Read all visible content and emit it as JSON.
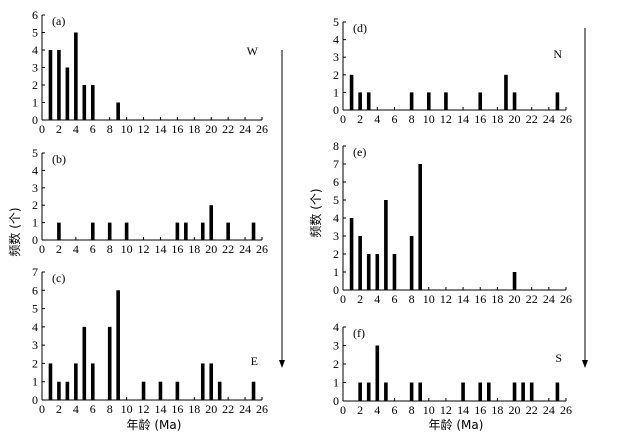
{
  "figure": {
    "xlabel": "年龄 (Ma)",
    "ylabel": "频数 (个)"
  },
  "chart_data": [
    {
      "id": "a",
      "type": "bar",
      "panel_label": "(a)",
      "direction_label": "W",
      "x": [
        1,
        2,
        3,
        4,
        5,
        6,
        9
      ],
      "values": [
        4,
        4,
        3,
        5,
        2,
        2,
        1
      ],
      "ylim": [
        0,
        6
      ],
      "yticks": [
        0,
        1,
        2,
        3,
        4,
        5,
        6
      ],
      "xlim": [
        0,
        26
      ],
      "xticks": [
        0,
        2,
        4,
        6,
        8,
        10,
        12,
        14,
        16,
        18,
        20,
        22,
        24,
        26
      ]
    },
    {
      "id": "b",
      "type": "bar",
      "panel_label": "(b)",
      "direction_label": "",
      "x": [
        2,
        6,
        8,
        10,
        16,
        17,
        19,
        20,
        22,
        25
      ],
      "values": [
        1,
        1,
        1,
        1,
        1,
        1,
        1,
        2,
        1,
        1
      ],
      "ylim": [
        0,
        5
      ],
      "yticks": [
        0,
        1,
        2,
        3,
        4,
        5
      ],
      "xlim": [
        0,
        26
      ],
      "xticks": [
        0,
        2,
        4,
        6,
        8,
        10,
        12,
        14,
        16,
        18,
        20,
        22,
        24,
        26
      ]
    },
    {
      "id": "c",
      "type": "bar",
      "panel_label": "(c)",
      "direction_label": "E",
      "x": [
        1,
        2,
        3,
        4,
        5,
        6,
        8,
        9,
        12,
        14,
        16,
        19,
        20,
        21,
        25
      ],
      "values": [
        2,
        1,
        1,
        2,
        4,
        2,
        4,
        6,
        1,
        1,
        1,
        2,
        2,
        1,
        1
      ],
      "ylim": [
        0,
        7
      ],
      "yticks": [
        0,
        1,
        2,
        3,
        4,
        5,
        6,
        7
      ],
      "xlim": [
        0,
        26
      ],
      "xticks": [
        0,
        2,
        4,
        6,
        8,
        10,
        12,
        14,
        16,
        18,
        20,
        22,
        24,
        26
      ]
    },
    {
      "id": "d",
      "type": "bar",
      "panel_label": "(d)",
      "direction_label": "N",
      "x": [
        1,
        2,
        3,
        8,
        10,
        12,
        16,
        19,
        20,
        25
      ],
      "values": [
        2,
        1,
        1,
        1,
        1,
        1,
        1,
        2,
        1,
        1
      ],
      "ylim": [
        0,
        5
      ],
      "yticks": [
        0,
        1,
        2,
        3,
        4,
        5
      ],
      "xlim": [
        0,
        26
      ],
      "xticks": [
        0,
        2,
        4,
        6,
        8,
        10,
        12,
        14,
        16,
        18,
        20,
        22,
        24,
        26
      ]
    },
    {
      "id": "e",
      "type": "bar",
      "panel_label": "(e)",
      "direction_label": "",
      "x": [
        1,
        2,
        3,
        4,
        5,
        6,
        8,
        9,
        20
      ],
      "values": [
        4,
        3,
        2,
        2,
        5,
        2,
        3,
        7,
        1
      ],
      "ylim": [
        0,
        8
      ],
      "yticks": [
        0,
        1,
        2,
        3,
        4,
        5,
        6,
        7,
        8
      ],
      "xlim": [
        0,
        26
      ],
      "xticks": [
        0,
        2,
        4,
        6,
        8,
        10,
        12,
        14,
        16,
        18,
        20,
        22,
        24,
        26
      ]
    },
    {
      "id": "f",
      "type": "bar",
      "panel_label": "(f)",
      "direction_label": "S",
      "x": [
        2,
        3,
        4,
        5,
        8,
        9,
        14,
        16,
        17,
        20,
        21,
        22,
        25
      ],
      "values": [
        1,
        1,
        3,
        1,
        1,
        1,
        1,
        1,
        1,
        1,
        1,
        1,
        1
      ],
      "ylim": [
        0,
        4
      ],
      "yticks": [
        0,
        1,
        2,
        3,
        4
      ],
      "xlim": [
        0,
        26
      ],
      "xticks": [
        0,
        2,
        4,
        6,
        8,
        10,
        12,
        14,
        16,
        18,
        20,
        22,
        24,
        26
      ]
    }
  ]
}
